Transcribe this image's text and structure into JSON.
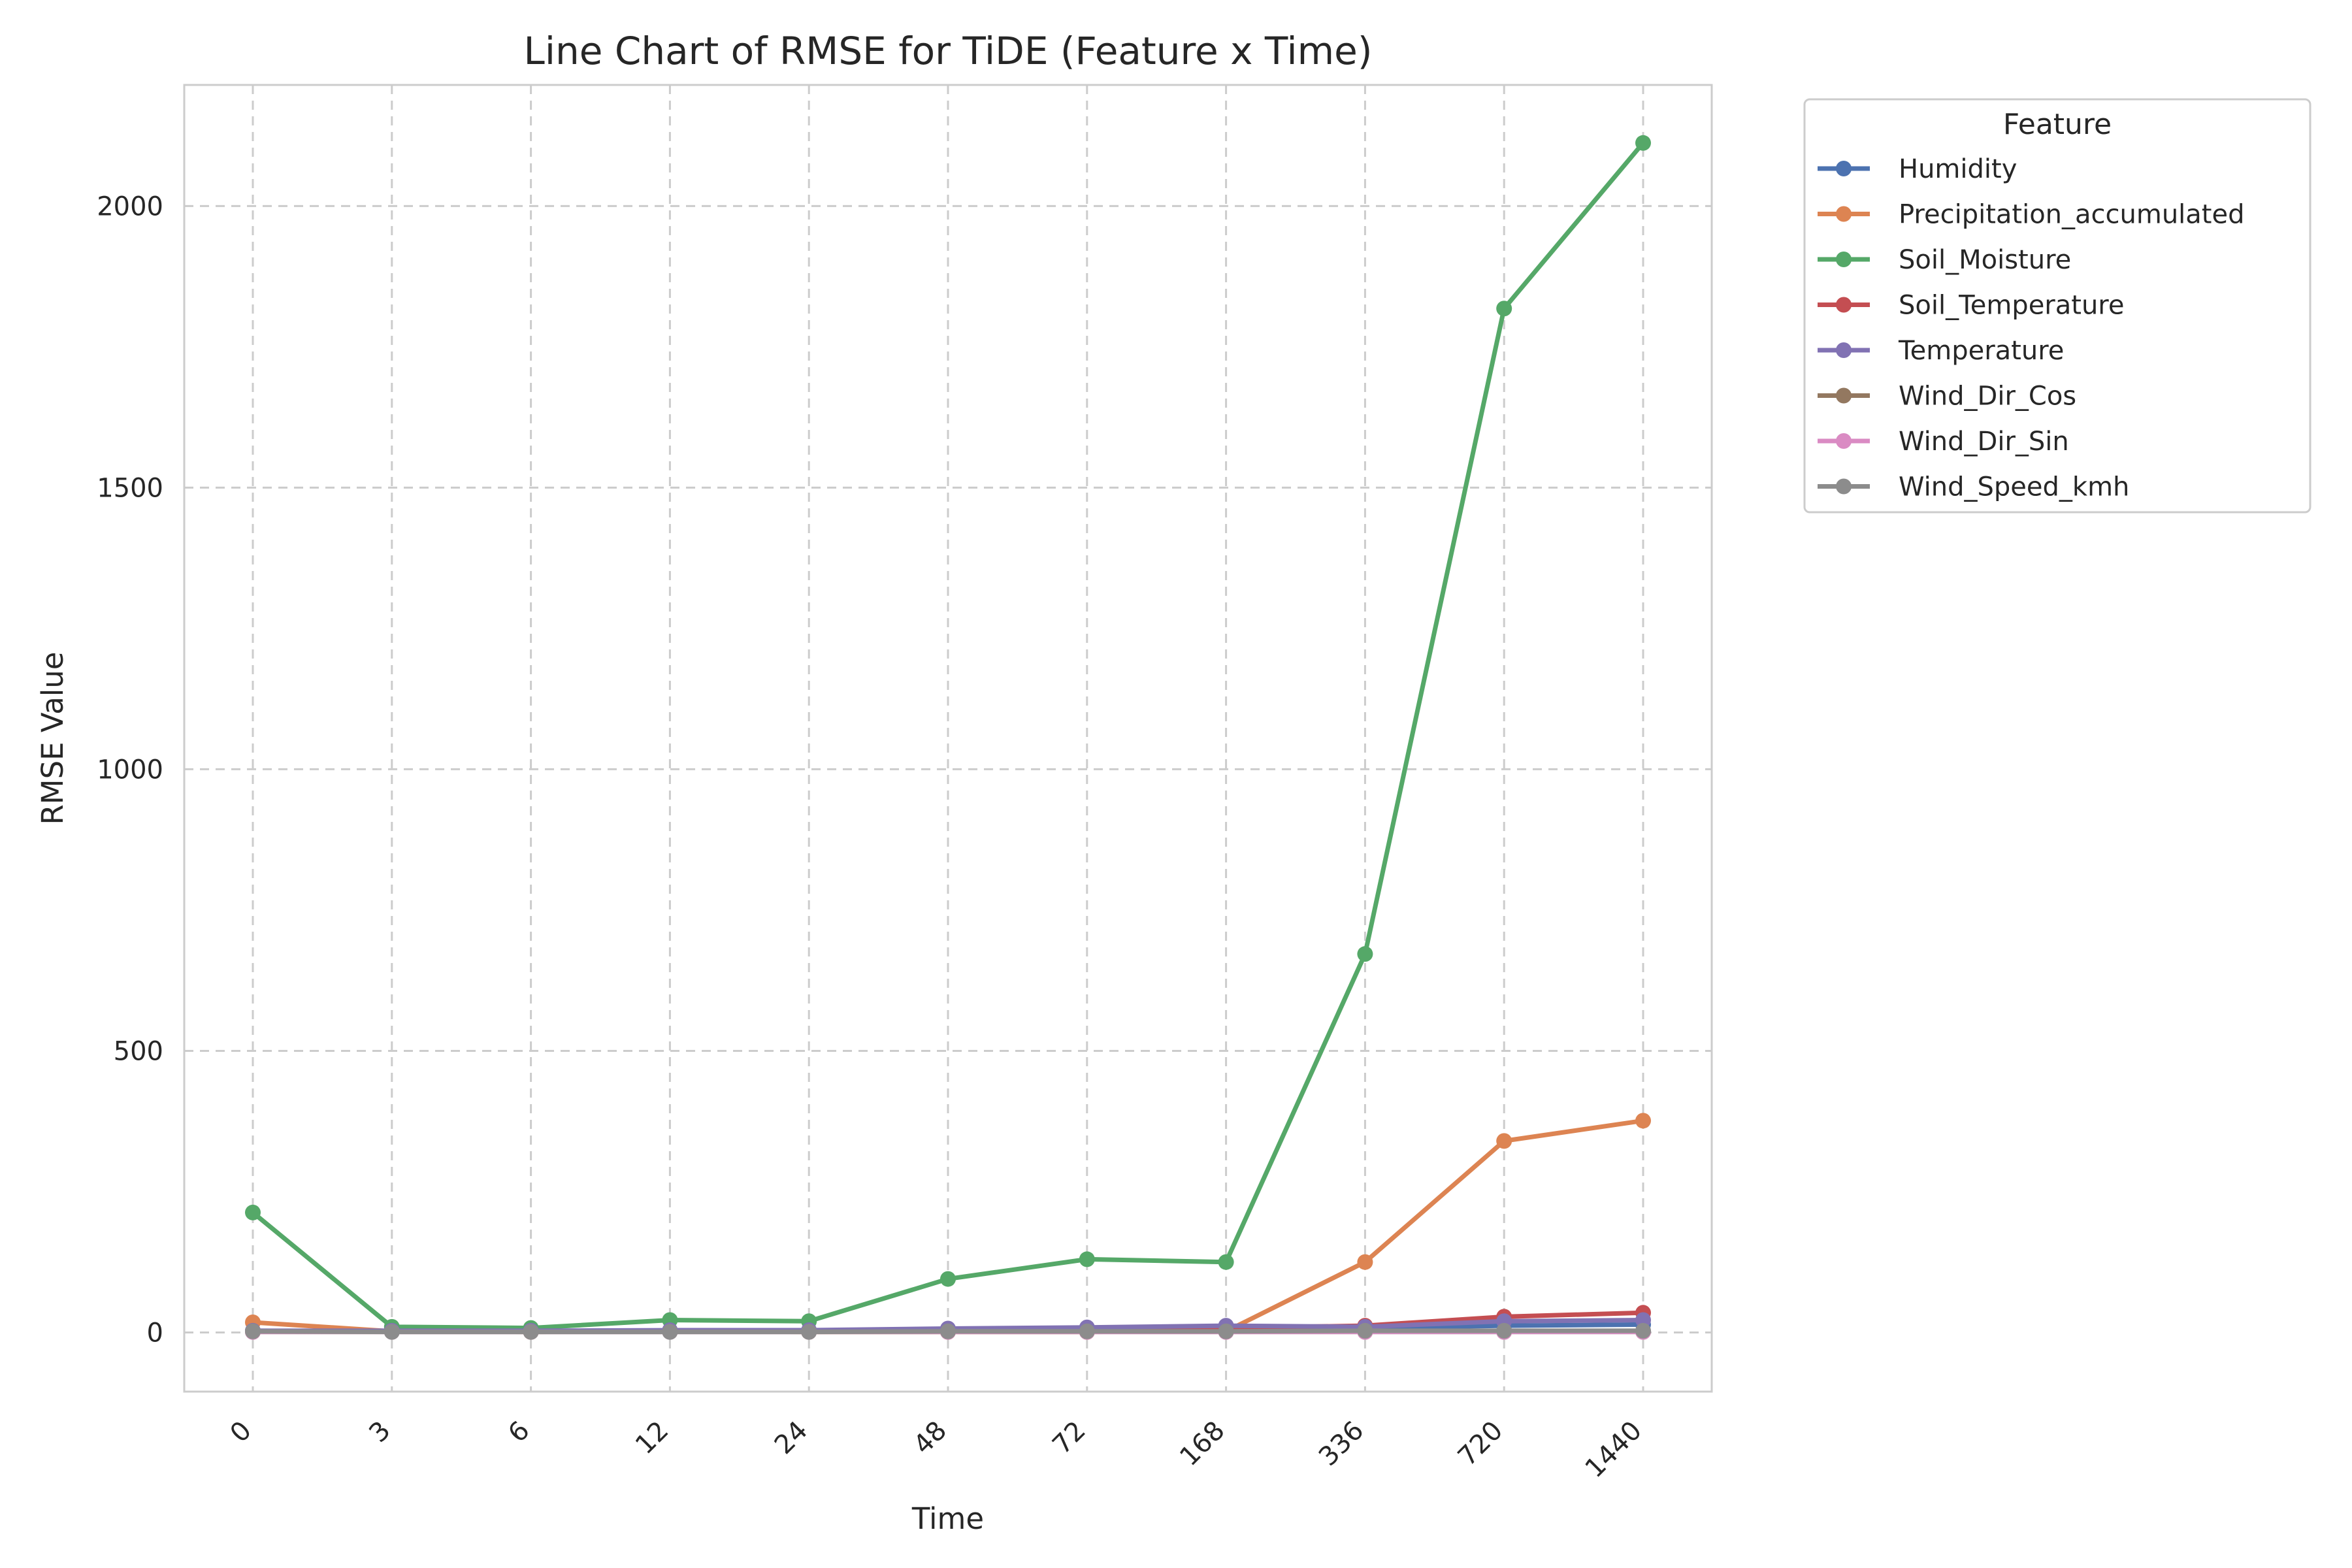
{
  "chart_data": {
    "type": "line",
    "title": "Line Chart of RMSE for TiDE (Feature x Time)",
    "xlabel": "Time",
    "ylabel": "RMSE Value",
    "categories": [
      "0",
      "3",
      "6",
      "12",
      "24",
      "48",
      "72",
      "168",
      "336",
      "720",
      "1440"
    ],
    "ylim": [
      -105,
      2215
    ],
    "yticks": [
      0,
      500,
      1000,
      1500,
      2000
    ],
    "grid": true,
    "legend": {
      "title": "Feature",
      "placement": "outside-top-right"
    },
    "series": [
      {
        "name": "Humidity",
        "color": "#4c72b0",
        "values": [
          3,
          2,
          2,
          3,
          3,
          6,
          7,
          10,
          8,
          12,
          14
        ]
      },
      {
        "name": "Precipitation_accumulated",
        "color": "#dd8452",
        "values": [
          18,
          2,
          1,
          2,
          1,
          1,
          1,
          2,
          125,
          340,
          376
        ]
      },
      {
        "name": "Soil_Moisture",
        "color": "#55a868",
        "values": [
          213,
          10,
          8,
          22,
          20,
          95,
          130,
          125,
          672,
          1818,
          2112
        ]
      },
      {
        "name": "Soil_Temperature",
        "color": "#c44e52",
        "values": [
          2,
          2,
          2,
          3,
          3,
          5,
          6,
          8,
          12,
          28,
          35
        ]
      },
      {
        "name": "Temperature",
        "color": "#8172b3",
        "values": [
          3,
          3,
          3,
          4,
          4,
          7,
          9,
          12,
          10,
          20,
          22
        ]
      },
      {
        "name": "Wind_Dir_Cos",
        "color": "#937860",
        "values": [
          1,
          1,
          1,
          1,
          1,
          1,
          1,
          1,
          1,
          1,
          1
        ]
      },
      {
        "name": "Wind_Dir_Sin",
        "color": "#da8bc3",
        "values": [
          1,
          1,
          1,
          1,
          1,
          1,
          1,
          1,
          1,
          1,
          1
        ]
      },
      {
        "name": "Wind_Speed_kmh",
        "color": "#8c8c8c",
        "values": [
          2,
          1,
          1,
          1,
          1,
          2,
          2,
          2,
          3,
          3,
          3
        ]
      }
    ]
  }
}
